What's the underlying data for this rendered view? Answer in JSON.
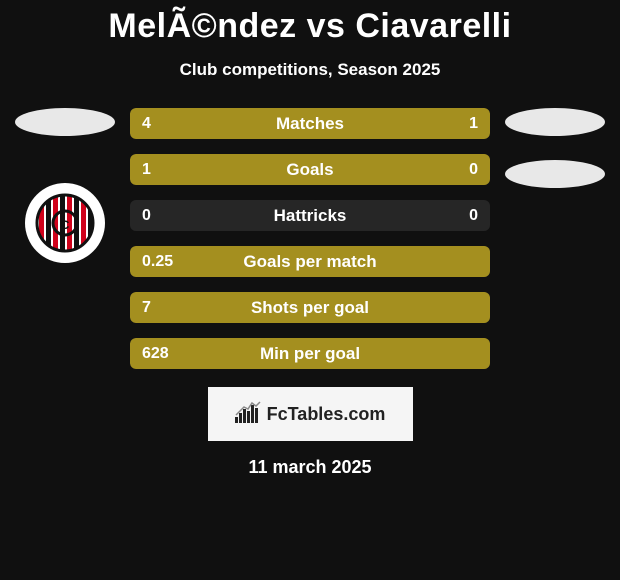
{
  "title": "MelÃ©ndez vs Ciavarelli",
  "subtitle": "Club competitions, Season 2025",
  "date": "11 march 2025",
  "footer": {
    "text": "FcTables.com"
  },
  "colors": {
    "bar_fill": "#a48f1f",
    "bar_bg": "#262626",
    "page_bg": "#101010",
    "ellipse": "#e8e8e8",
    "footer_bg": "#f5f5f5"
  },
  "crest": {
    "circle_bg": "#ffffff",
    "stripe_colors": [
      "#d0021b",
      "#111111"
    ],
    "inner_ring": "#111111"
  },
  "stats": [
    {
      "label": "Matches",
      "left_val": "4",
      "right_val": "1",
      "left_pct": 80,
      "right_pct": 20
    },
    {
      "label": "Goals",
      "left_val": "1",
      "right_val": "0",
      "left_pct": 100,
      "right_pct": 0
    },
    {
      "label": "Hattricks",
      "left_val": "0",
      "right_val": "0",
      "left_pct": 0,
      "right_pct": 0
    },
    {
      "label": "Goals per match",
      "left_val": "0.25",
      "right_val": "",
      "left_pct": 100,
      "right_pct": 0
    },
    {
      "label": "Shots per goal",
      "left_val": "7",
      "right_val": "",
      "left_pct": 100,
      "right_pct": 0
    },
    {
      "label": "Min per goal",
      "left_val": "628",
      "right_val": "",
      "left_pct": 100,
      "right_pct": 0
    }
  ]
}
